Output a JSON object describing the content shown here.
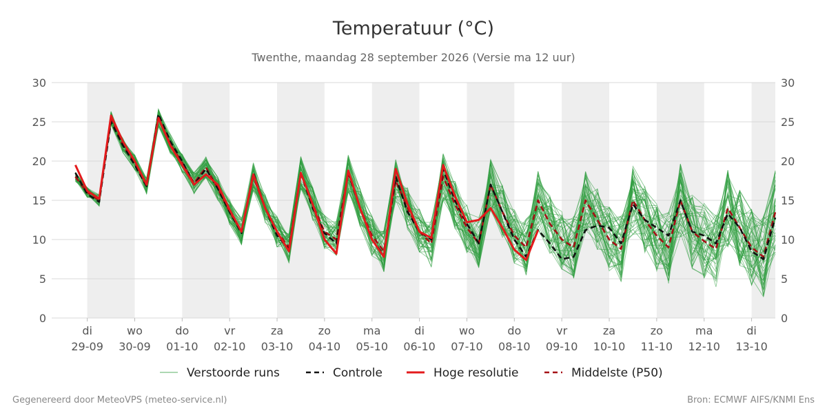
{
  "chart_data": {
    "type": "line",
    "title": "Temperatuur (°C)",
    "subtitle": "Twenthe, maandag 28 september 2026 (Versie ma 12 uur)",
    "ylim": [
      0,
      30
    ],
    "yticks": [
      0,
      5,
      10,
      15,
      20,
      25,
      30
    ],
    "x_range_days": [
      -0.75,
      14.5
    ],
    "grid": true,
    "legend_position": "bottom",
    "x_tick_labels": [
      {
        "day": "di",
        "date": "29-09"
      },
      {
        "day": "wo",
        "date": "30-09"
      },
      {
        "day": "do",
        "date": "01-10"
      },
      {
        "day": "vr",
        "date": "02-10"
      },
      {
        "day": "za",
        "date": "03-10"
      },
      {
        "day": "zo",
        "date": "04-10"
      },
      {
        "day": "ma",
        "date": "05-10"
      },
      {
        "day": "di",
        "date": "06-10"
      },
      {
        "day": "wo",
        "date": "07-10"
      },
      {
        "day": "do",
        "date": "08-10"
      },
      {
        "day": "vr",
        "date": "09-10"
      },
      {
        "day": "za",
        "date": "10-10"
      },
      {
        "day": "zo",
        "date": "11-10"
      },
      {
        "day": "ma",
        "date": "12-10"
      },
      {
        "day": "di",
        "date": "13-10"
      }
    ],
    "x_tick_days": [
      0,
      1,
      2,
      3,
      4,
      5,
      6,
      7,
      8,
      9,
      10,
      11,
      12,
      13,
      14
    ],
    "series": [
      {
        "name": "Hoge resolutie",
        "color": "#e31a1c",
        "style": "solid",
        "x": [
          -0.25,
          0,
          0.25,
          0.5,
          0.75,
          1,
          1.25,
          1.5,
          1.75,
          2,
          2.25,
          2.5,
          2.75,
          3,
          3.25,
          3.5,
          3.75,
          4,
          4.25,
          4.5,
          4.75,
          5,
          5.25,
          5.5,
          5.75,
          6,
          6.25,
          6.5,
          6.75,
          7,
          7.25,
          7.5,
          7.75,
          8,
          8.25,
          8.5,
          8.75,
          9,
          9.25,
          9.5
        ],
        "y": [
          19.5,
          16.2,
          15.2,
          25.8,
          22.5,
          20.0,
          17.0,
          25.5,
          22.0,
          19.5,
          17.0,
          18.3,
          17.0,
          13.8,
          11.0,
          18.3,
          14.0,
          11.0,
          8.5,
          18.5,
          14.5,
          10.0,
          8.2,
          18.8,
          14.0,
          10.0,
          7.8,
          19.0,
          14.5,
          11.0,
          10.2,
          19.5,
          15.5,
          12.2,
          12.5,
          14.0,
          11.5,
          8.7,
          7.4,
          11.2
        ]
      },
      {
        "name": "Controle",
        "color": "#111111",
        "style": "dash",
        "x": [
          -0.25,
          0,
          0.25,
          0.5,
          0.75,
          1,
          1.25,
          1.5,
          1.75,
          2,
          2.25,
          2.5,
          2.75,
          3,
          3.25,
          3.5,
          3.75,
          4,
          4.25,
          4.5,
          4.75,
          5,
          5.25,
          5.5,
          5.75,
          6,
          6.25,
          6.5,
          6.75,
          7,
          7.25,
          7.5,
          7.75,
          8,
          8.25,
          8.5,
          8.75,
          9,
          9.25,
          9.5,
          9.75,
          10,
          10.25,
          10.5,
          10.75,
          11,
          11.25,
          11.5,
          11.75,
          12,
          12.25,
          12.5,
          12.75,
          13,
          13.25,
          13.5,
          13.75,
          14,
          14.25,
          14.5
        ],
        "y": [
          18.5,
          15.8,
          14.8,
          25.0,
          22.0,
          19.5,
          16.8,
          26.0,
          22.5,
          20.0,
          17.0,
          19.0,
          16.5,
          13.5,
          10.8,
          18.5,
          14.0,
          10.5,
          8.8,
          18.5,
          14.0,
          10.8,
          9.5,
          18.5,
          14.0,
          10.0,
          8.0,
          18.0,
          13.5,
          11.0,
          10.0,
          19.0,
          15.0,
          12.0,
          9.5,
          17.0,
          13.5,
          10.0,
          7.8,
          11.2,
          9.5,
          7.5,
          7.8,
          11.2,
          11.8,
          11.5,
          9.5,
          14.5,
          12.5,
          11.5,
          10.5,
          15.0,
          11.0,
          10.5,
          9.5,
          13.3,
          11.5,
          8.5,
          7.5,
          12.8
        ]
      },
      {
        "name": "Middelste (P50)",
        "color": "#a50f15",
        "style": "dash",
        "x": [
          -0.25,
          0,
          0.25,
          0.5,
          0.75,
          1,
          1.25,
          1.5,
          1.75,
          2,
          2.25,
          2.5,
          2.75,
          3,
          3.25,
          3.5,
          3.75,
          4,
          4.25,
          4.5,
          4.75,
          5,
          5.25,
          5.5,
          5.75,
          6,
          6.25,
          6.5,
          6.75,
          7,
          7.25,
          7.5,
          7.75,
          8,
          8.25,
          8.5,
          8.75,
          9,
          9.25,
          9.5,
          9.75,
          10,
          10.25,
          10.5,
          10.75,
          11,
          11.25,
          11.5,
          11.75,
          12,
          12.25,
          12.5,
          12.75,
          13,
          13.25,
          13.5,
          13.75,
          14,
          14.25,
          14.5
        ],
        "y": [
          18.0,
          16.0,
          15.0,
          25.5,
          22.0,
          19.8,
          16.8,
          25.5,
          22.2,
          19.8,
          17.2,
          19.2,
          16.5,
          13.5,
          11.0,
          18.0,
          14.0,
          11.0,
          9.0,
          18.5,
          14.5,
          11.0,
          10.0,
          18.5,
          14.0,
          10.5,
          8.5,
          17.5,
          14.0,
          11.0,
          9.5,
          18.0,
          14.5,
          11.5,
          9.5,
          17.0,
          13.5,
          10.5,
          9.0,
          15.0,
          12.0,
          10.0,
          9.0,
          15.0,
          12.5,
          10.0,
          8.8,
          15.0,
          12.5,
          10.5,
          9.0,
          15.0,
          11.0,
          9.8,
          8.8,
          14.0,
          11.5,
          9.0,
          7.8,
          13.5
        ]
      }
    ],
    "ensemble": {
      "name": "Verstoorde runs",
      "color": "#2e9c3e",
      "members": 50
    }
  },
  "legend": [
    {
      "label": "Verstoorde runs",
      "color": "#2e9c3e",
      "style": "thin"
    },
    {
      "label": "Controle",
      "color": "#111111",
      "style": "dash"
    },
    {
      "label": "Hoge resolutie",
      "color": "#e31a1c",
      "style": "solid"
    },
    {
      "label": "Middelste (P50)",
      "color": "#a50f15",
      "style": "dash"
    }
  ],
  "footer": {
    "left": "Gegenereerd door MeteoVPS (meteo-service.nl)",
    "right": "Bron: ECMWF AIFS/KNMI Ens"
  },
  "colors": {
    "shade": "#eeeeee",
    "grid": "#d8d8d8"
  }
}
